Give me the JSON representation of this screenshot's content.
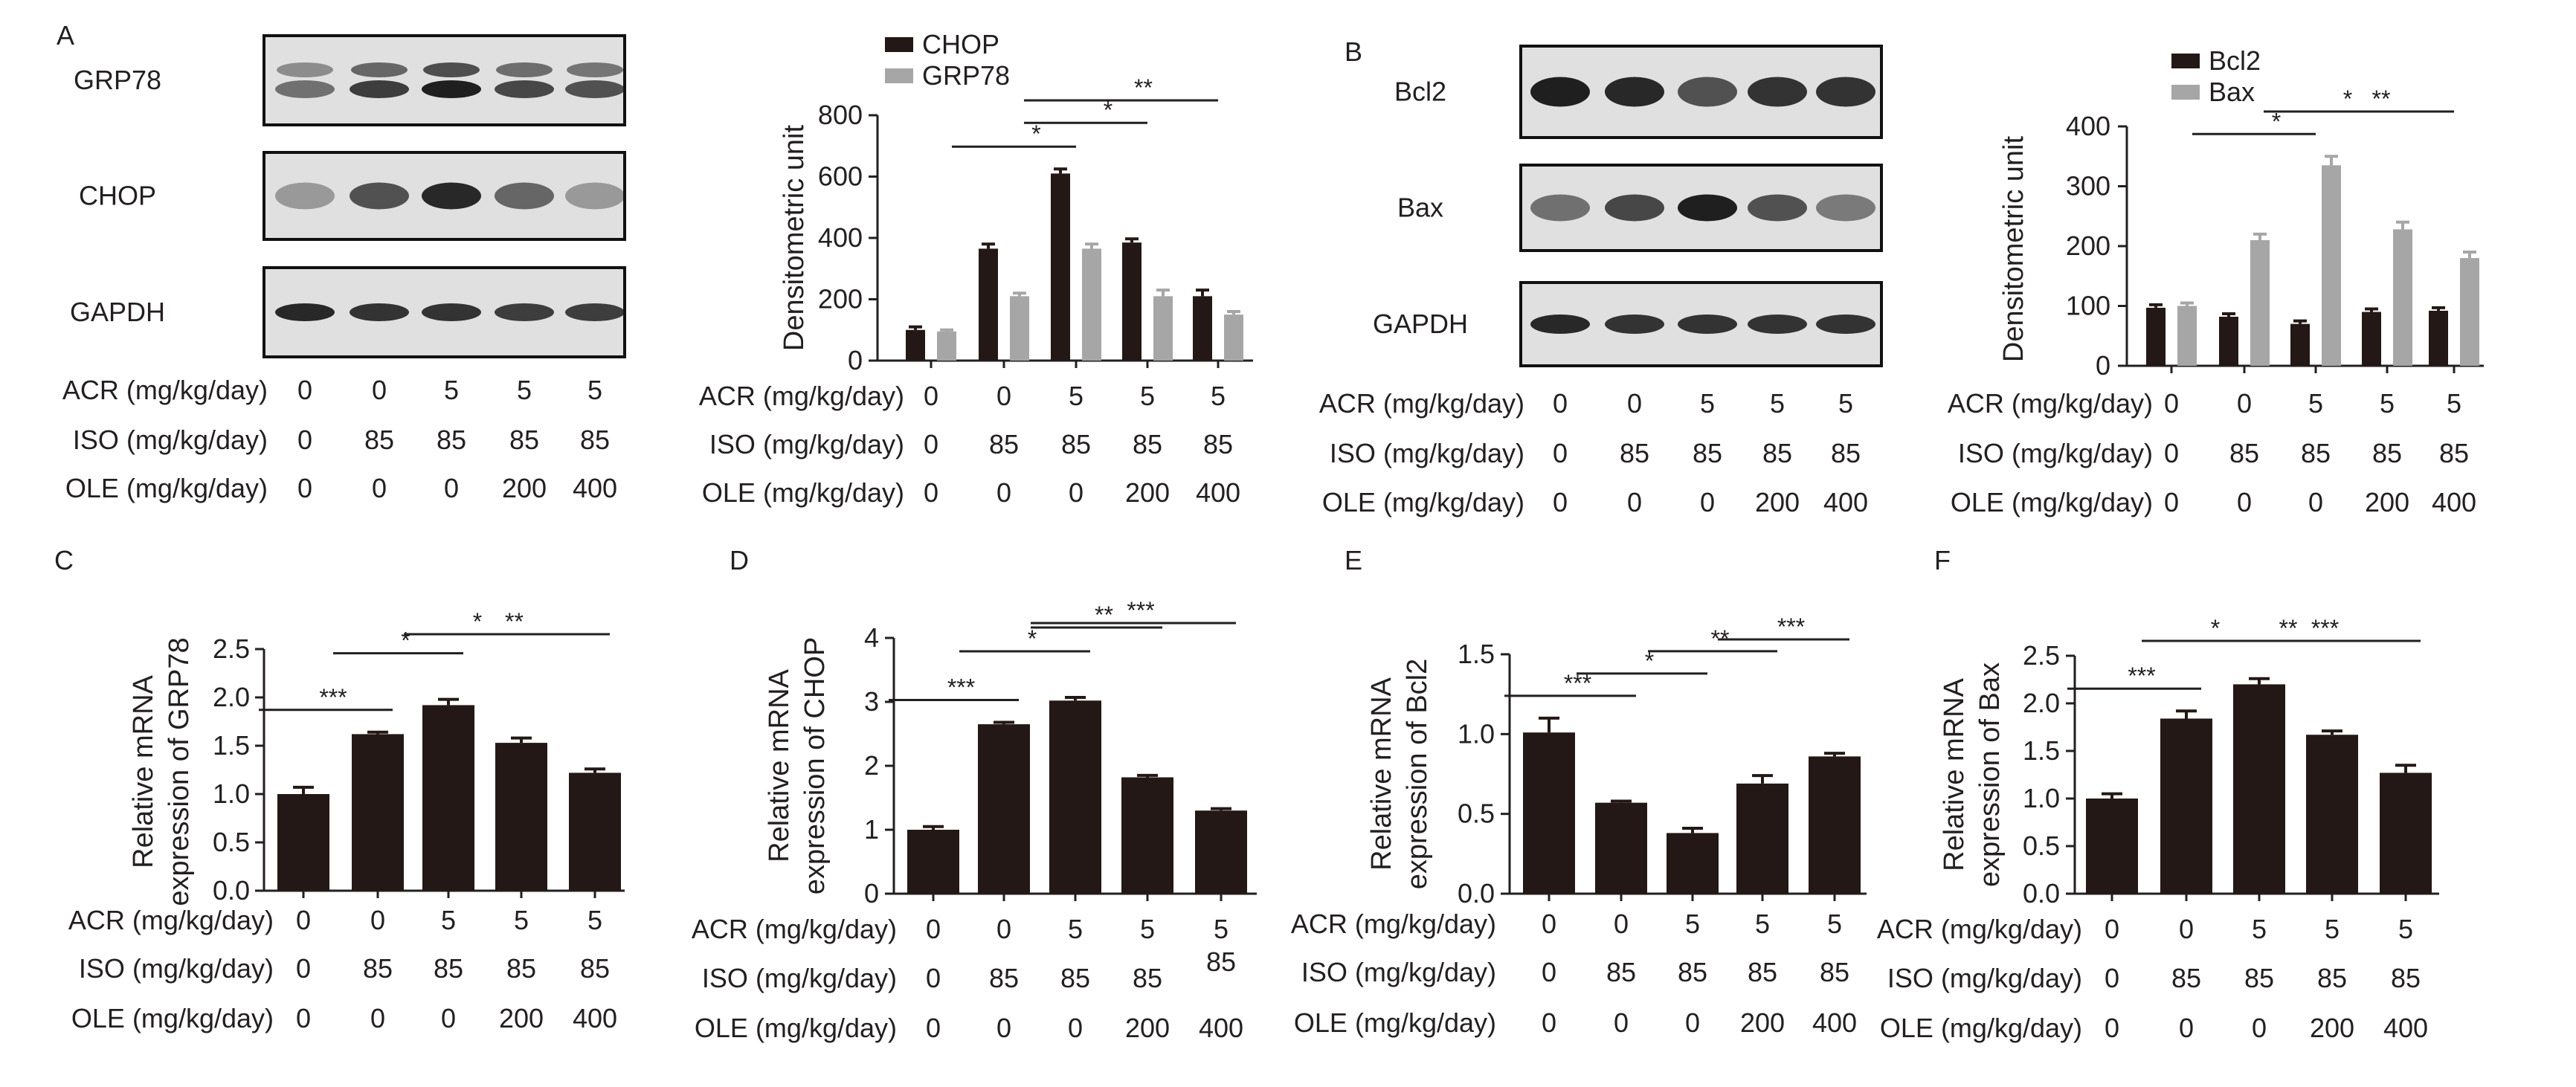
{
  "panel_letters": [
    "A",
    "B",
    "C",
    "D",
    "E",
    "F"
  ],
  "colors": {
    "dark_bar": "#231815",
    "grey_bar": "#a6a6a6",
    "axis": "#231f20",
    "blot_bg": "#e0e0e0",
    "band": "#141414"
  },
  "row_labels": {
    "acr": "ACR (mg/kg/day)",
    "iso": "ISO (mg/kg/day)",
    "ole": "OLE (mg/kg/day)"
  },
  "row_values": {
    "acr": [
      "0",
      "0",
      "5",
      "5",
      "5"
    ],
    "iso": [
      "0",
      "85",
      "85",
      "85",
      "85"
    ],
    "ole": [
      "0",
      "0",
      "0",
      "200",
      "400"
    ]
  },
  "blots": {
    "A": [
      "GRP78",
      "CHOP",
      "GAPDH"
    ],
    "B": [
      "Bcl2",
      "Bax",
      "GAPDH"
    ]
  },
  "chart_data": [
    {
      "panel": "A",
      "type": "bar",
      "ylabel": "Densitometric unit",
      "ylim": [
        0,
        800
      ],
      "yticks": [
        0,
        200,
        400,
        600,
        800
      ],
      "legend_position": "top-left",
      "series": [
        {
          "name": "CHOP",
          "values": [
            100,
            365,
            610,
            385,
            210
          ],
          "errors": [
            10,
            15,
            15,
            12,
            20
          ]
        },
        {
          "name": "GRP78",
          "values": [
            95,
            210,
            365,
            210,
            150
          ],
          "errors": [
            5,
            10,
            15,
            20,
            10
          ]
        }
      ],
      "significance": [
        {
          "from": 1,
          "to": 2,
          "label": "*"
        },
        {
          "from": 2,
          "to": 3,
          "label": "*"
        },
        {
          "from": 2,
          "to": 4,
          "label": "**"
        }
      ]
    },
    {
      "panel": "B",
      "type": "bar",
      "ylabel": "Densitometric unit",
      "ylim": [
        0,
        400
      ],
      "yticks": [
        0,
        100,
        200,
        300,
        400
      ],
      "legend_position": "top-left",
      "series": [
        {
          "name": "Bcl2",
          "values": [
            97,
            82,
            70,
            90,
            92
          ],
          "errors": [
            5,
            5,
            5,
            5,
            5
          ]
        },
        {
          "name": "Bax",
          "values": [
            100,
            210,
            335,
            228,
            180
          ],
          "errors": [
            5,
            10,
            15,
            12,
            10
          ]
        }
      ],
      "significance": [
        {
          "from": 1,
          "to": 2,
          "label": "*"
        },
        {
          "from": 2,
          "to": 3,
          "label": "*"
        },
        {
          "from": 2,
          "to": 4,
          "label": "**"
        }
      ]
    },
    {
      "panel": "C",
      "type": "bar",
      "ylabel": [
        "Relative mRNA",
        "expression of GRP78"
      ],
      "ylim": [
        0,
        2.5
      ],
      "yticks": [
        "0.0",
        "0.5",
        "1.0",
        "1.5",
        "2.0",
        "2.5"
      ],
      "series": [
        {
          "values": [
            1.0,
            1.62,
            1.92,
            1.53,
            1.22
          ],
          "errors": [
            0.07,
            0.02,
            0.06,
            0.05,
            0.04
          ]
        }
      ],
      "significance": [
        {
          "from": 0,
          "to": 1,
          "label": "***"
        },
        {
          "from": 1,
          "to": 2,
          "label": "*"
        },
        {
          "from": 2,
          "to": 3,
          "label": "*"
        },
        {
          "from": 2,
          "to": 4,
          "label": "**"
        }
      ]
    },
    {
      "panel": "D",
      "type": "bar",
      "ylabel": [
        "Relative mRNA",
        "expression of CHOP"
      ],
      "ylim": [
        0,
        4
      ],
      "yticks": [
        "0",
        "1",
        "2",
        "3",
        "4"
      ],
      "series": [
        {
          "values": [
            1.0,
            2.65,
            3.02,
            1.82,
            1.3
          ],
          "errors": [
            0.05,
            0.03,
            0.05,
            0.03,
            0.03
          ]
        }
      ],
      "significance": [
        {
          "from": 0,
          "to": 1,
          "label": "***"
        },
        {
          "from": 1,
          "to": 2,
          "label": "*"
        },
        {
          "from": 2,
          "to": 3,
          "label": "**"
        },
        {
          "from": 2,
          "to": 4,
          "label": "***"
        }
      ]
    },
    {
      "panel": "E",
      "type": "bar",
      "ylabel": [
        "Relative mRNA",
        "expression of Bcl2"
      ],
      "ylim": [
        0,
        1.5
      ],
      "yticks": [
        "0.0",
        "0.5",
        "1.0",
        "1.5"
      ],
      "series": [
        {
          "values": [
            1.01,
            0.57,
            0.38,
            0.69,
            0.86
          ],
          "errors": [
            0.09,
            0.01,
            0.03,
            0.05,
            0.02
          ]
        }
      ],
      "significance": [
        {
          "from": 0,
          "to": 1,
          "label": "***"
        },
        {
          "from": 1,
          "to": 2,
          "label": "*"
        },
        {
          "from": 2,
          "to": 3,
          "label": "**"
        },
        {
          "from": 3,
          "to": 4,
          "label": "***"
        }
      ]
    },
    {
      "panel": "F",
      "type": "bar",
      "ylabel": [
        "Relative mRNA",
        "expression of Bax"
      ],
      "ylim": [
        0,
        2.5
      ],
      "yticks": [
        "0.0",
        "0.5",
        "1.0",
        "1.5",
        "2.0",
        "2.5"
      ],
      "series": [
        {
          "values": [
            1.0,
            1.84,
            2.2,
            1.67,
            1.27
          ],
          "errors": [
            0.05,
            0.08,
            0.06,
            0.04,
            0.08
          ]
        }
      ],
      "significance": [
        {
          "from": 0,
          "to": 1,
          "label": "***"
        },
        {
          "from": 1,
          "to": 2,
          "label": "*"
        },
        {
          "from": 2,
          "to": 3,
          "label": "**"
        },
        {
          "from": 2,
          "to": 4,
          "label": "***"
        }
      ]
    }
  ]
}
